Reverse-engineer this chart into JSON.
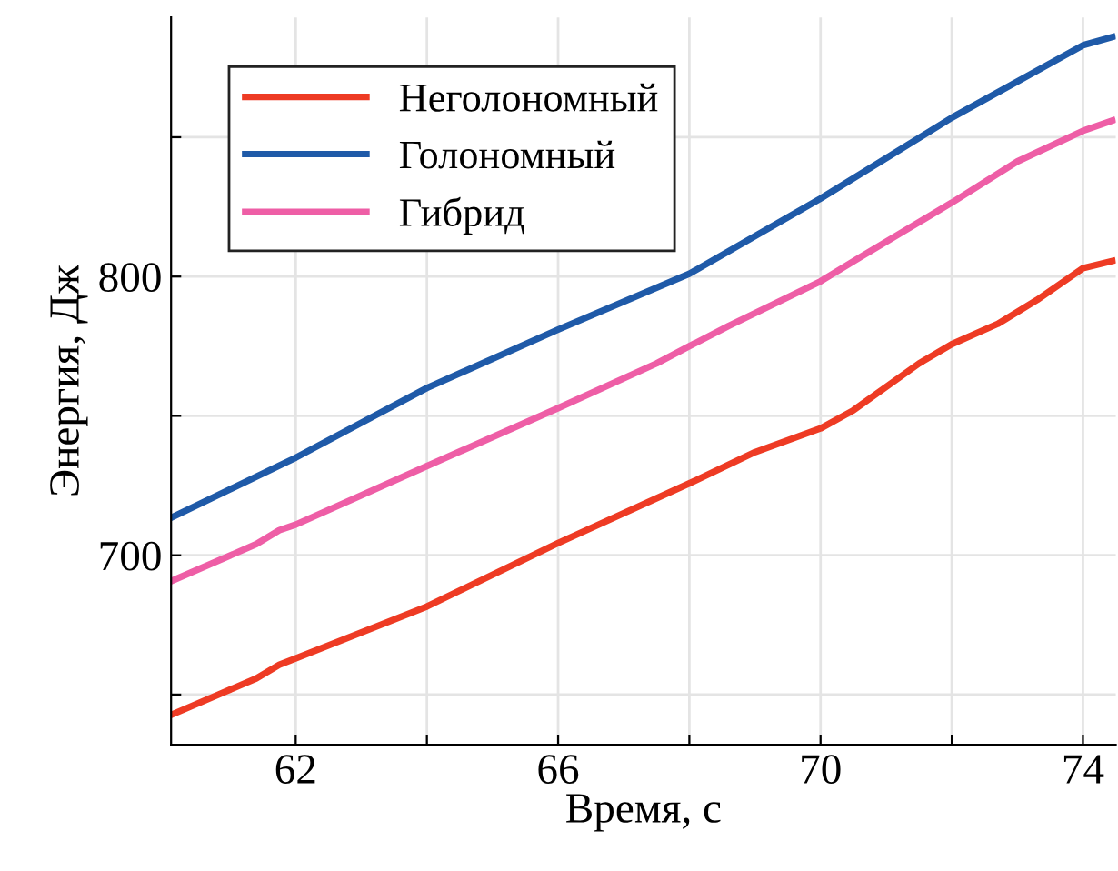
{
  "chart_data": {
    "type": "line",
    "xlabel": "Время, с",
    "ylabel": "Энергия, Дж",
    "xlim": [
      60.1,
      74.5
    ],
    "ylim": [
      632,
      893
    ],
    "xticks": [
      62,
      {
        "value": 64,
        "label": null
      },
      66,
      {
        "value": 68,
        "label": null
      },
      70,
      {
        "value": 72,
        "label": null
      },
      74
    ],
    "yticks": [
      {
        "value": 650,
        "label": null
      },
      700,
      {
        "value": 750,
        "label": null
      },
      800,
      {
        "value": 850,
        "label": null
      }
    ],
    "grid": true,
    "legend": "top left",
    "line_style": "solid",
    "series": [
      {
        "name": "Неголономный",
        "color": "#ee3b24",
        "x": [
          60.1,
          61.4,
          61.75,
          62,
          64,
          66,
          68,
          69,
          70,
          70.5,
          71.5,
          72,
          72.7,
          73.3,
          74,
          74.45
        ],
        "values": [
          642.7,
          655.8,
          660.7,
          663,
          681.6,
          704.4,
          725.8,
          737,
          745.5,
          752,
          768.8,
          775.7,
          783,
          791.6,
          803,
          805.6
        ]
      },
      {
        "name": "Голономный",
        "color": "#1f5aa8",
        "x": [
          60.1,
          62,
          64,
          66,
          68,
          70,
          72,
          74,
          74.45
        ],
        "values": [
          713.5,
          735,
          760,
          781,
          801,
          828,
          857,
          883,
          886
        ]
      },
      {
        "name": "Гибрид",
        "color": "#ee5ea6",
        "x": [
          60.1,
          61.4,
          61.75,
          62,
          64,
          66,
          67.5,
          68,
          68.6,
          70,
          70.6,
          72,
          73,
          74,
          74.45
        ],
        "values": [
          690.7,
          704,
          709,
          711,
          732,
          752.8,
          768.8,
          775,
          782.3,
          798.3,
          806.9,
          826.5,
          841.3,
          852.3,
          856
        ]
      }
    ]
  }
}
